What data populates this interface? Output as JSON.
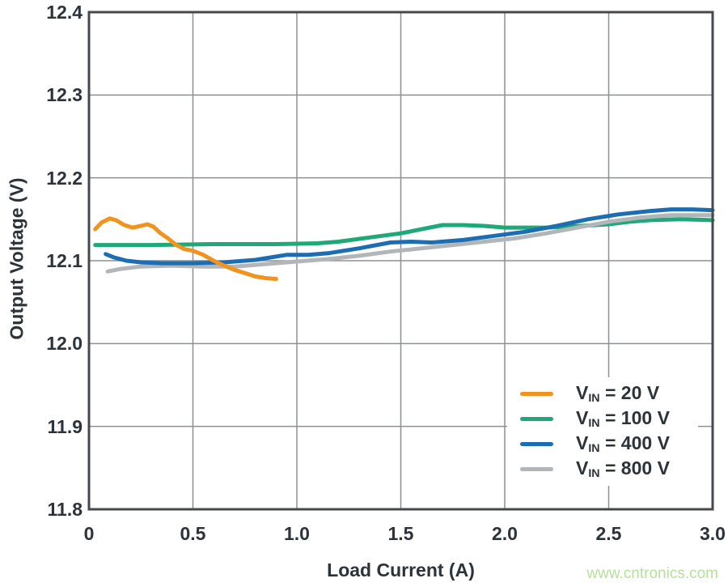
{
  "colors": {
    "text": "#2c333b",
    "grid": "#8e9194",
    "frame": "#45484c",
    "background": "#ffffff"
  },
  "watermark": {
    "text": "www.cntronics.com",
    "color": "#b5e19c"
  },
  "legend": {
    "items": [
      {
        "v_prefix": "V",
        "subscript": "IN",
        "suffix": " = 20 V"
      },
      {
        "v_prefix": "V",
        "subscript": "IN",
        "suffix": " = 100 V"
      },
      {
        "v_prefix": "V",
        "subscript": "IN",
        "suffix": " = 400 V"
      },
      {
        "v_prefix": "V",
        "subscript": "IN",
        "suffix": " = 800 V"
      }
    ]
  },
  "chart_data": {
    "type": "line",
    "title": "",
    "xlabel": "Load Current (A)",
    "ylabel": "Output Voltage (V)",
    "xlim": [
      0,
      3.0
    ],
    "ylim": [
      11.8,
      12.4
    ],
    "grid": true,
    "legend_position": "lower right",
    "xticks": [
      0,
      0.5,
      1.0,
      1.5,
      2.0,
      2.5,
      3.0
    ],
    "xtick_labels": [
      "0",
      "0.5",
      "1.0",
      "1.5",
      "2.0",
      "2.5",
      "3.0"
    ],
    "yticks": [
      11.8,
      11.9,
      12.0,
      12.1,
      12.2,
      12.3,
      12.4
    ],
    "ytick_labels": [
      "11.8",
      "11.9",
      "12.0",
      "12.1",
      "12.2",
      "12.3",
      "12.4"
    ],
    "series": [
      {
        "name": "VIN = 20 V",
        "color": "#F0941F",
        "points": [
          [
            0.03,
            12.138
          ],
          [
            0.06,
            12.146
          ],
          [
            0.1,
            12.151
          ],
          [
            0.13,
            12.149
          ],
          [
            0.17,
            12.143
          ],
          [
            0.21,
            12.14
          ],
          [
            0.25,
            12.142
          ],
          [
            0.28,
            12.144
          ],
          [
            0.31,
            12.141
          ],
          [
            0.34,
            12.134
          ],
          [
            0.38,
            12.127
          ],
          [
            0.42,
            12.119
          ],
          [
            0.46,
            12.114
          ],
          [
            0.5,
            12.112
          ],
          [
            0.55,
            12.107
          ],
          [
            0.6,
            12.1
          ],
          [
            0.65,
            12.094
          ],
          [
            0.7,
            12.089
          ],
          [
            0.75,
            12.085
          ],
          [
            0.8,
            12.081
          ],
          [
            0.85,
            12.079
          ],
          [
            0.9,
            12.078
          ]
        ]
      },
      {
        "name": "VIN = 100 V",
        "color": "#1FA878",
        "points": [
          [
            0.03,
            12.119
          ],
          [
            0.3,
            12.119
          ],
          [
            0.6,
            12.12
          ],
          [
            0.9,
            12.12
          ],
          [
            1.1,
            12.121
          ],
          [
            1.2,
            12.123
          ],
          [
            1.35,
            12.128
          ],
          [
            1.5,
            12.133
          ],
          [
            1.6,
            12.138
          ],
          [
            1.7,
            12.143
          ],
          [
            1.8,
            12.143
          ],
          [
            1.9,
            12.142
          ],
          [
            2.0,
            12.14
          ],
          [
            2.1,
            12.14
          ],
          [
            2.2,
            12.14
          ],
          [
            2.3,
            12.141
          ],
          [
            2.5,
            12.144
          ],
          [
            2.6,
            12.147
          ],
          [
            2.7,
            12.149
          ],
          [
            2.85,
            12.15
          ],
          [
            3.0,
            12.149
          ]
        ]
      },
      {
        "name": "VIN = 400 V",
        "color": "#1D6DB3",
        "points": [
          [
            0.08,
            12.108
          ],
          [
            0.12,
            12.104
          ],
          [
            0.18,
            12.1
          ],
          [
            0.25,
            12.098
          ],
          [
            0.35,
            12.097
          ],
          [
            0.5,
            12.097
          ],
          [
            0.65,
            12.098
          ],
          [
            0.8,
            12.101
          ],
          [
            0.95,
            12.107
          ],
          [
            1.05,
            12.107
          ],
          [
            1.15,
            12.109
          ],
          [
            1.3,
            12.115
          ],
          [
            1.45,
            12.122
          ],
          [
            1.55,
            12.123
          ],
          [
            1.65,
            12.122
          ],
          [
            1.8,
            12.125
          ],
          [
            1.95,
            12.13
          ],
          [
            2.1,
            12.135
          ],
          [
            2.25,
            12.142
          ],
          [
            2.4,
            12.15
          ],
          [
            2.55,
            12.156
          ],
          [
            2.7,
            12.16
          ],
          [
            2.8,
            12.162
          ],
          [
            2.9,
            12.162
          ],
          [
            3.0,
            12.161
          ]
        ]
      },
      {
        "name": "VIN = 800 V",
        "color": "#B3B6B9",
        "points": [
          [
            0.09,
            12.087
          ],
          [
            0.15,
            12.09
          ],
          [
            0.25,
            12.093
          ],
          [
            0.4,
            12.094
          ],
          [
            0.55,
            12.093
          ],
          [
            0.7,
            12.093
          ],
          [
            0.85,
            12.096
          ],
          [
            1.0,
            12.099
          ],
          [
            1.15,
            12.102
          ],
          [
            1.3,
            12.106
          ],
          [
            1.45,
            12.111
          ],
          [
            1.6,
            12.115
          ],
          [
            1.75,
            12.119
          ],
          [
            1.9,
            12.123
          ],
          [
            2.05,
            12.127
          ],
          [
            2.2,
            12.133
          ],
          [
            2.35,
            12.14
          ],
          [
            2.5,
            12.147
          ],
          [
            2.65,
            12.152
          ],
          [
            2.8,
            12.155
          ],
          [
            3.0,
            12.155
          ]
        ]
      }
    ]
  }
}
